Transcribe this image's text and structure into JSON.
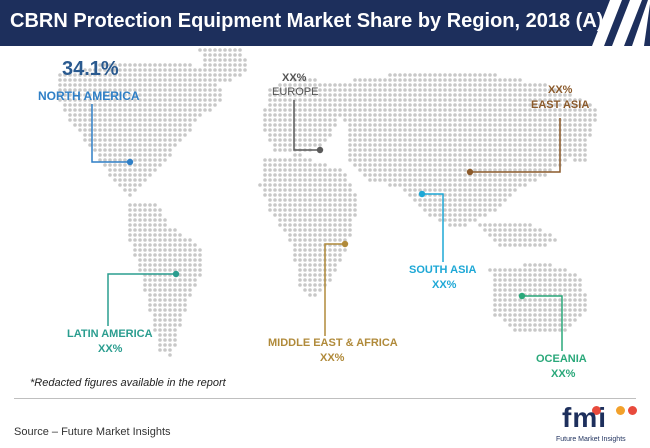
{
  "title": "CBRN Protection Equipment Market Share by Region, 2018 (A)",
  "regions": {
    "north_america": {
      "value": "34.1%",
      "name": "NORTH AMERICA",
      "color": "#2f7fc6"
    },
    "europe": {
      "value": "XX%",
      "name": "EUROPE",
      "color": "#5a5a5a"
    },
    "east_asia": {
      "value": "XX%",
      "name": "EAST ASIA",
      "color": "#8b5a2b"
    },
    "south_asia": {
      "name": "SOUTH ASIA",
      "value": "XX%",
      "color": "#1ea8d6"
    },
    "latin_america": {
      "name": "LATIN AMERICA",
      "value": "XX%",
      "color": "#2a9d8f"
    },
    "middle_east_africa": {
      "name": "MIDDLE EAST & AFRICA",
      "value": "XX%",
      "color": "#b08a3a"
    },
    "oceania": {
      "name": "OCEANIA",
      "value": "XX%",
      "color": "#2aa87a"
    }
  },
  "note": "*Redacted figures available in the report",
  "source": "Source – Future Market Insights",
  "logo": {
    "letters": "fmi",
    "subtitle": "Future Market Insights"
  },
  "colors": {
    "title_bg": "#1d2f5c",
    "map_dot": "#c8c8c8"
  }
}
